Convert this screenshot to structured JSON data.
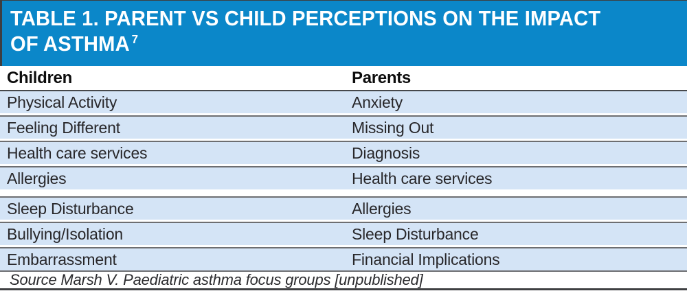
{
  "header": {
    "title_line1": "TABLE 1. PARENT VS CHILD PERCEPTIONS ON THE IMPACT",
    "title_line2": "OF ASTHMA",
    "citation": "7"
  },
  "table": {
    "columns": [
      "Children",
      "Parents"
    ],
    "rows": [
      {
        "children": "Physical Activity",
        "parents": "Anxiety"
      },
      {
        "children": "Feeling Different",
        "parents": "Missing Out"
      },
      {
        "children": "Health care services",
        "parents": "Diagnosis"
      },
      {
        "children": "Allergies",
        "parents": "Health care services"
      },
      {
        "children": "Sleep Disturbance",
        "parents": "Allergies"
      },
      {
        "children": "Bullying/Isolation",
        "parents": "Sleep Disturbance"
      },
      {
        "children": "Embarrassment",
        "parents": "Financial Implications"
      }
    ]
  },
  "source": {
    "text": "Source Marsh V. Paediatric asthma focus groups [unpublished]"
  },
  "colors": {
    "header_bg": "#0b87c9",
    "row_bg": "#d4e4f6",
    "separator": "#6d6e71",
    "dark_rule": "#3f4042"
  },
  "chart_data": {
    "type": "table",
    "title": "TABLE 1. PARENT VS CHILD PERCEPTIONS ON THE IMPACT OF ASTHMA",
    "citation_ref": "7",
    "columns": [
      "Children",
      "Parents"
    ],
    "rows": [
      [
        "Physical Activity",
        "Anxiety"
      ],
      [
        "Feeling Different",
        "Missing Out"
      ],
      [
        "Health care services",
        "Diagnosis"
      ],
      [
        "Allergies",
        "Health care services"
      ],
      [
        "Sleep Disturbance",
        "Allergies"
      ],
      [
        "Bullying/Isolation",
        "Sleep Disturbance"
      ],
      [
        "Embarrassment",
        "Financial Implications"
      ]
    ],
    "source": "Source Marsh V. Paediatric asthma focus groups [unpublished]"
  }
}
